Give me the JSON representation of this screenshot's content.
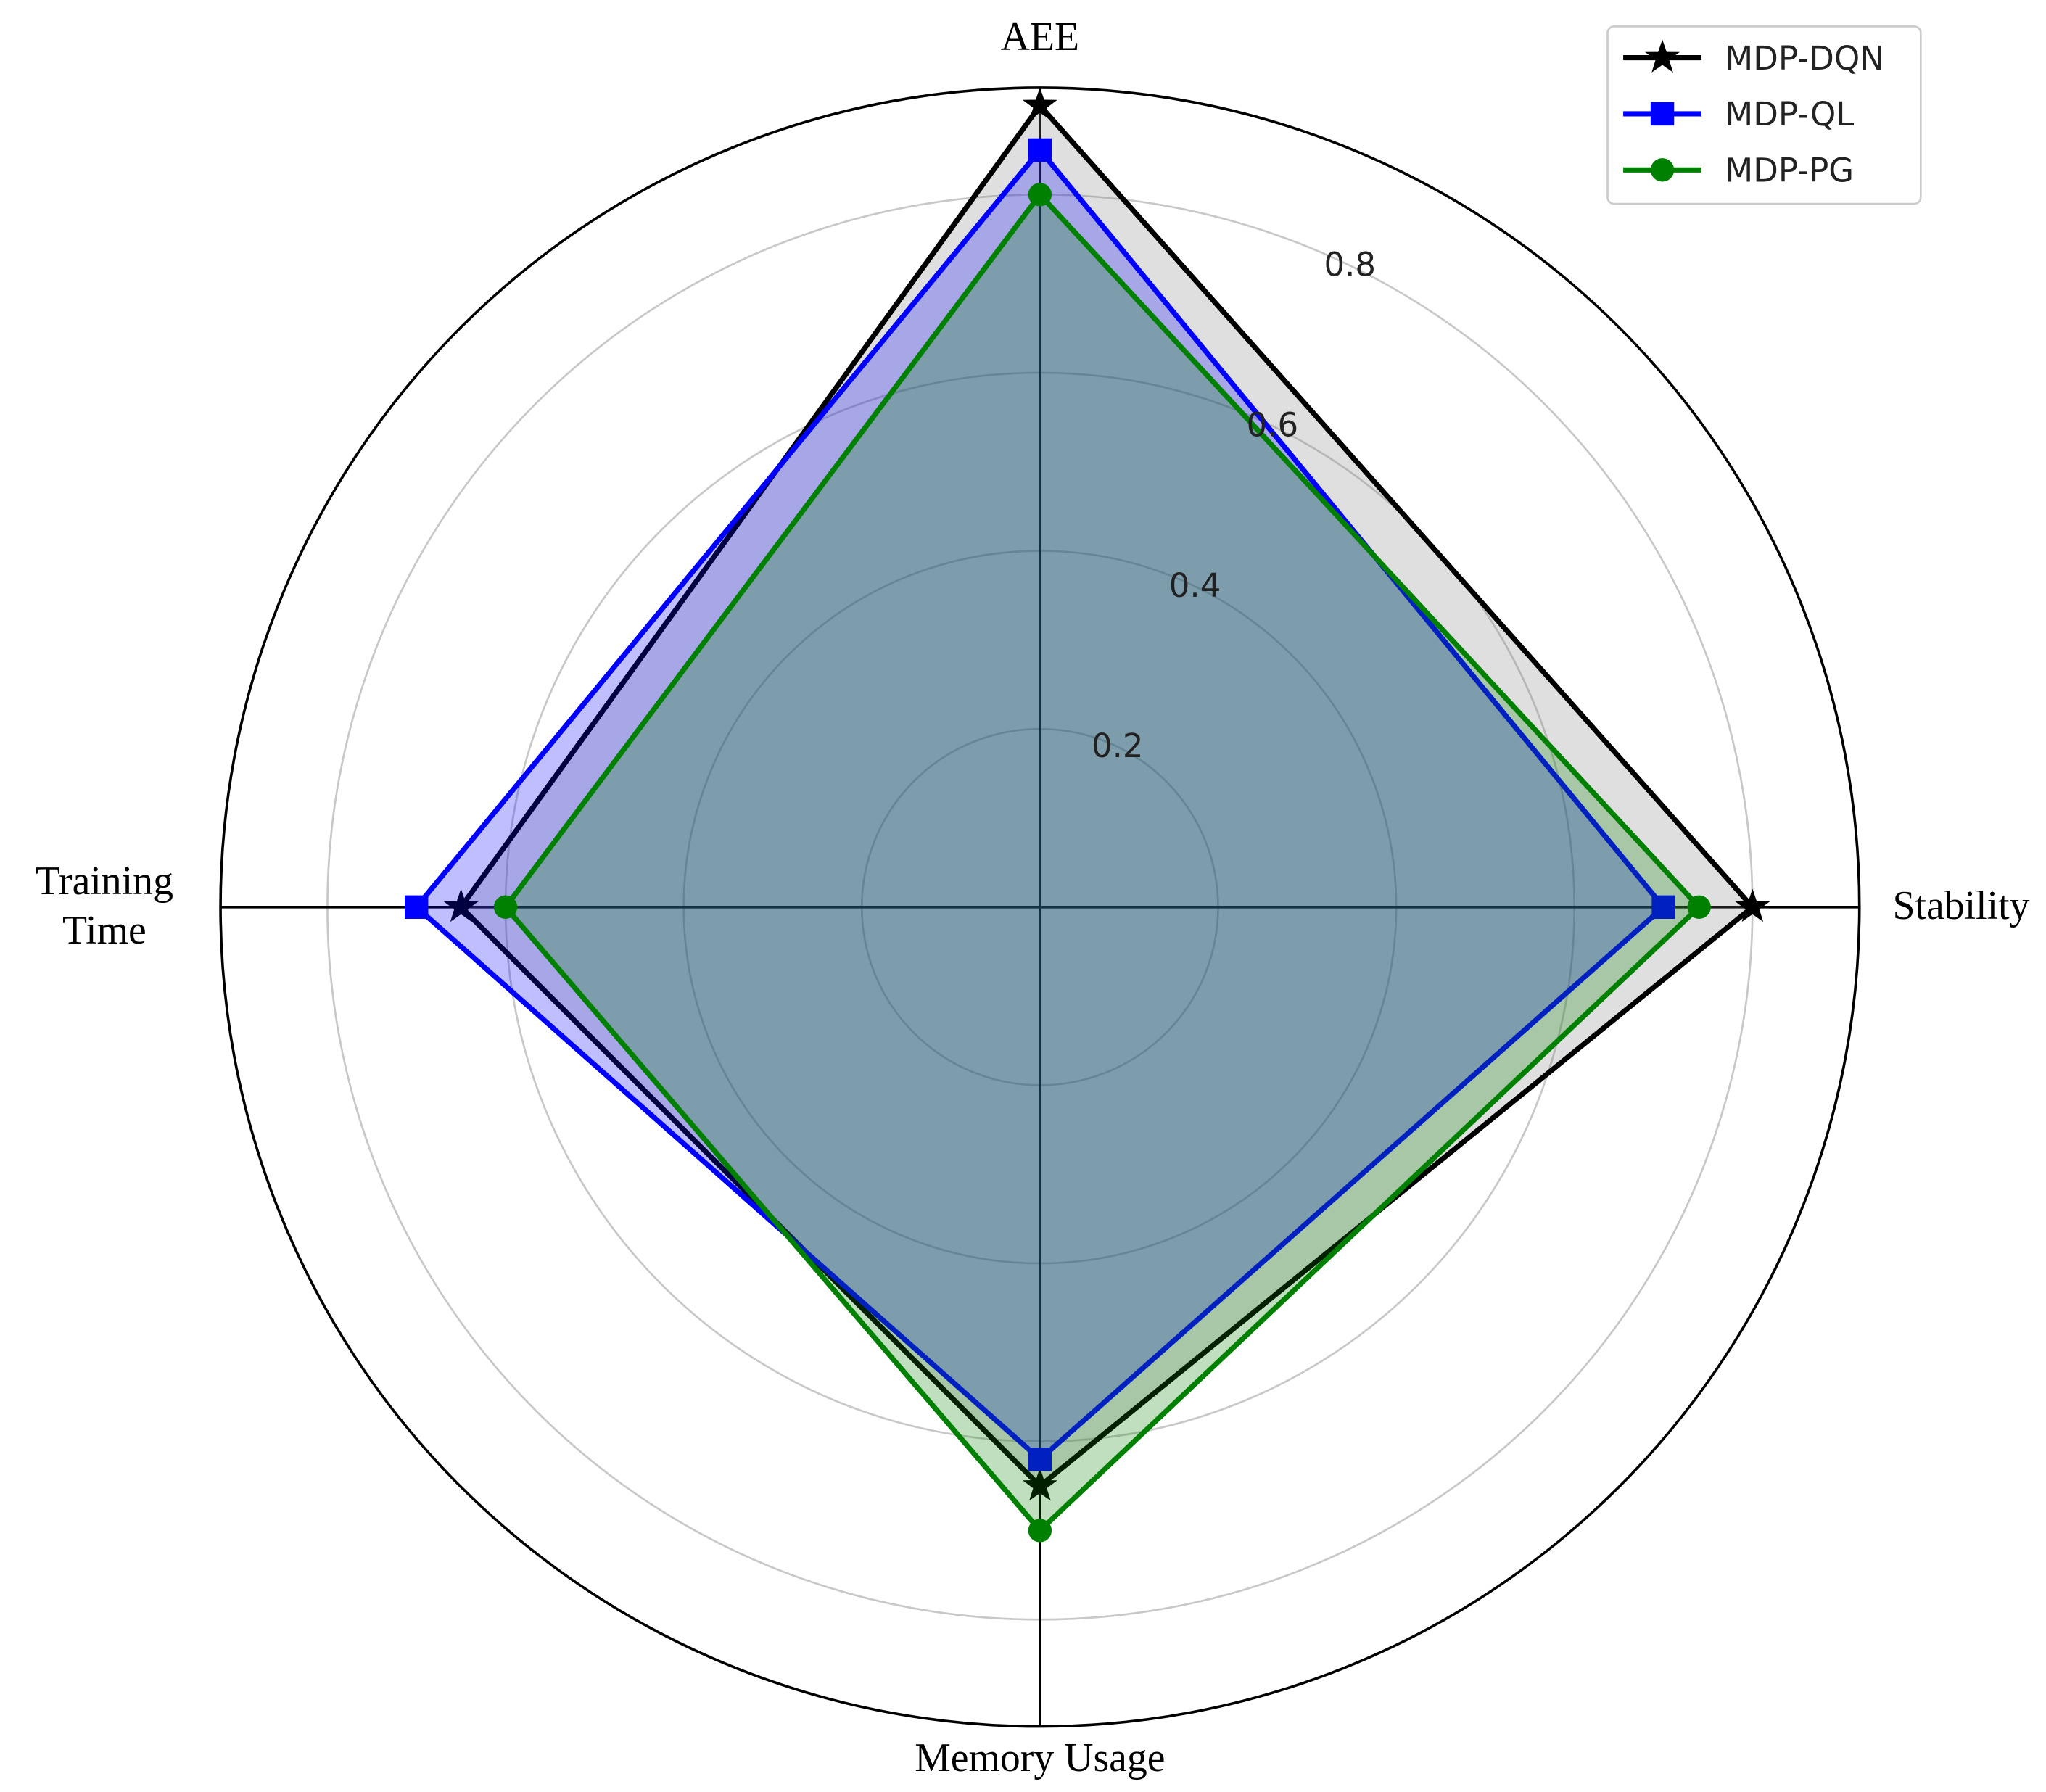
{
  "chart_data": {
    "type": "radar",
    "categories": [
      "AEE",
      "Stability",
      "Memory Usage",
      "Training\nTime"
    ],
    "series": [
      {
        "name": "MDP-DQN",
        "color": "#000000",
        "fill": "#808080",
        "marker": "star",
        "values": [
          0.9,
          0.8,
          0.65,
          0.65
        ]
      },
      {
        "name": "MDP-QL",
        "color": "#0000ff",
        "fill": "#0000ff",
        "marker": "square",
        "values": [
          0.85,
          0.7,
          0.62,
          0.7
        ]
      },
      {
        "name": "MDP-PG",
        "color": "#008000",
        "fill": "#008000",
        "marker": "circle",
        "values": [
          0.8,
          0.74,
          0.7,
          0.6
        ]
      }
    ],
    "ylim": [
      0,
      0.92
    ],
    "yticks": [
      0.2,
      0.4,
      0.6,
      0.8
    ],
    "grid": true,
    "legend": "upper right"
  }
}
